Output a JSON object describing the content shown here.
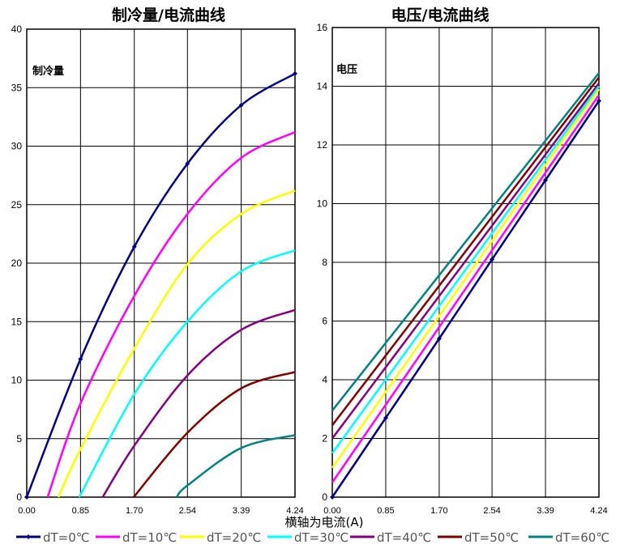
{
  "chart_data": [
    {
      "type": "line",
      "title": "制冷量/电流曲线",
      "ylabel": "制冷量",
      "xlabel": "横轴为电流(A)",
      "x_ticks": [
        "0.00",
        "0.85",
        "1.70",
        "2.54",
        "3.39",
        "4.24"
      ],
      "y_ticks": [
        "0",
        "5",
        "10",
        "15",
        "20",
        "25",
        "30",
        "35",
        "40"
      ],
      "xlim": [
        0,
        4.24
      ],
      "ylim": [
        0,
        40
      ],
      "grid": true,
      "series": [
        {
          "name": "dT=0℃",
          "color": "#000080",
          "markers": true,
          "x": [
            0,
            0.85,
            1.7,
            2.54,
            3.39,
            4.24
          ],
          "y": [
            0,
            11.8,
            21.4,
            28.5,
            33.5,
            36.2
          ]
        },
        {
          "name": "dT=10℃",
          "color": "#ff00ff",
          "x": [
            0.33,
            0.85,
            1.7,
            2.54,
            3.39,
            4.24
          ],
          "y": [
            0,
            8.0,
            17.2,
            24.2,
            29.0,
            31.2
          ]
        },
        {
          "name": "dT=20℃",
          "color": "#ffff00",
          "x": [
            0.5,
            0.85,
            1.7,
            2.54,
            3.39,
            4.24
          ],
          "y": [
            0,
            4.1,
            12.7,
            19.9,
            24.2,
            26.2
          ]
        },
        {
          "name": "dT=30℃",
          "color": "#00ffff",
          "x": [
            0.83,
            1.7,
            2.54,
            3.39,
            4.24
          ],
          "y": [
            0,
            8.8,
            15.0,
            19.3,
            21.1
          ]
        },
        {
          "name": "dT=40℃",
          "color": "#800080",
          "x": [
            1.2,
            1.7,
            2.54,
            3.39,
            4.24
          ],
          "y": [
            0,
            4.4,
            10.4,
            14.3,
            16.0
          ]
        },
        {
          "name": "dT=50℃",
          "color": "#800000",
          "x": [
            1.69,
            2.54,
            3.39,
            4.24
          ],
          "y": [
            0,
            5.5,
            9.3,
            10.7
          ]
        },
        {
          "name": "dT=60℃",
          "color": "#008080",
          "x": [
            2.37,
            2.54,
            3.39,
            4.24
          ],
          "y": [
            0,
            1.0,
            4.2,
            5.3
          ]
        }
      ]
    },
    {
      "type": "line",
      "title": "电压/电流曲线",
      "ylabel": "电压",
      "x_ticks": [
        "0.00",
        "0.85",
        "1.70",
        "2.54",
        "3.39",
        "4.24"
      ],
      "y_ticks": [
        "0",
        "2",
        "4",
        "6",
        "8",
        "10",
        "12",
        "14",
        "16"
      ],
      "xlim": [
        0,
        4.24
      ],
      "ylim": [
        0,
        16
      ],
      "grid": true,
      "series": [
        {
          "name": "dT=0℃",
          "color": "#000080",
          "markers": true,
          "x": [
            0,
            0.85,
            1.7,
            2.54,
            3.39,
            4.24
          ],
          "y": [
            0,
            2.7,
            5.4,
            8.1,
            10.8,
            13.5
          ]
        },
        {
          "name": "dT=10℃",
          "color": "#ff00ff",
          "x": [
            0,
            4.24
          ],
          "y": [
            0.5,
            13.7
          ]
        },
        {
          "name": "dT=20℃",
          "color": "#ffff00",
          "x": [
            0,
            4.24
          ],
          "y": [
            1.0,
            13.9
          ]
        },
        {
          "name": "dT=30℃",
          "color": "#00ffff",
          "x": [
            0,
            4.24
          ],
          "y": [
            1.5,
            14.0
          ]
        },
        {
          "name": "dT=40℃",
          "color": "#800080",
          "x": [
            0,
            4.24
          ],
          "y": [
            2.0,
            14.1
          ]
        },
        {
          "name": "dT=50℃",
          "color": "#800000",
          "x": [
            0,
            4.24
          ],
          "y": [
            2.45,
            14.3
          ]
        },
        {
          "name": "dT=60℃",
          "color": "#008080",
          "x": [
            0,
            4.24
          ],
          "y": [
            2.95,
            14.45
          ]
        }
      ]
    }
  ],
  "legend": [
    "dT=0℃",
    "dT=10℃",
    "dT=20℃",
    "dT=30℃",
    "dT=40℃",
    "dT=50℃",
    "dT=60℃"
  ]
}
